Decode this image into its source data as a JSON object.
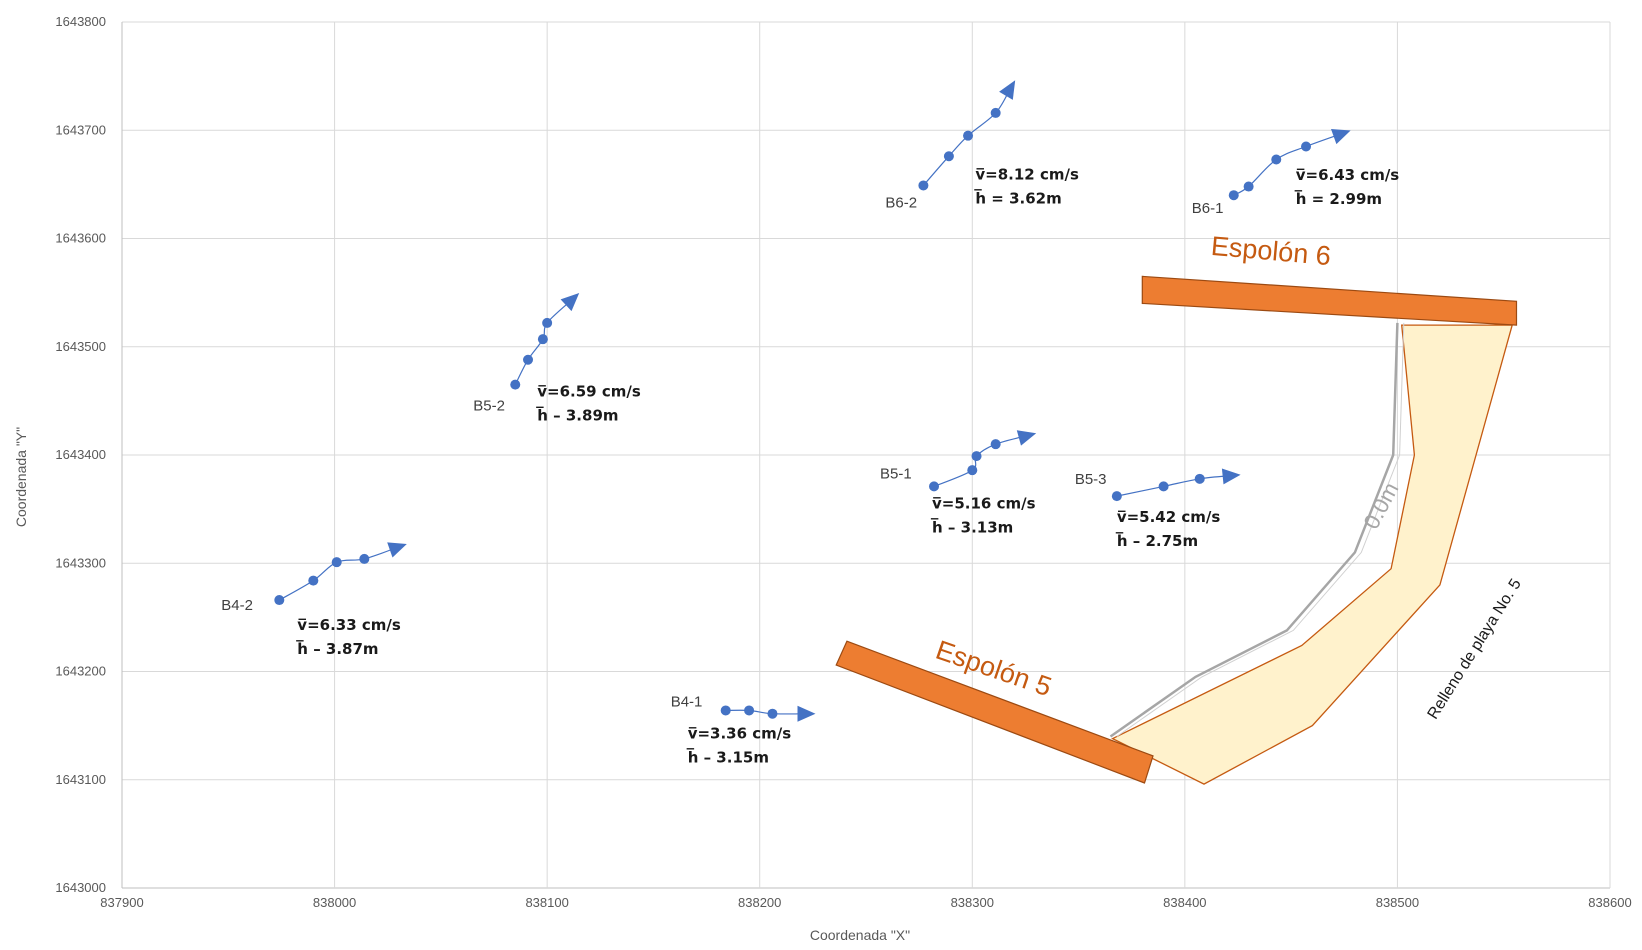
{
  "chart_data": {
    "type": "scatter",
    "title": "",
    "xlabel": "Coordenada \"X\"",
    "ylabel": "Coordenada \"Y\"",
    "xlim": [
      837900,
      838600
    ],
    "ylim": [
      1643000,
      1643800
    ],
    "x_ticks": [
      837900,
      838000,
      838100,
      838200,
      838300,
      838400,
      838500,
      838600
    ],
    "y_ticks": [
      1643000,
      1643100,
      1643200,
      1643300,
      1643400,
      1643500,
      1643600,
      1643700,
      1643800
    ],
    "grid": true,
    "series_color": "#4472c4",
    "series": [
      {
        "name": "B4-2",
        "v": "v̅=6.33 cm/s",
        "h": "h̅ – 3.87m",
        "points": [
          [
            837974,
            1643266
          ],
          [
            837990,
            1643284
          ],
          [
            838001,
            1643301
          ],
          [
            838014,
            1643304
          ],
          [
            838030,
            1643315
          ]
        ]
      },
      {
        "name": "B4-1",
        "v": "v̅=3.36 cm/s",
        "h": "h̅ – 3.15m",
        "points": [
          [
            838184,
            1643164
          ],
          [
            838195,
            1643164
          ],
          [
            838206,
            1643161
          ],
          [
            838222,
            1643161
          ]
        ]
      },
      {
        "name": "B5-2",
        "v": "v̅=6.59 cm/s",
        "h": "h̅ – 3.89m",
        "points": [
          [
            838085,
            1643465
          ],
          [
            838091,
            1643488
          ],
          [
            838098,
            1643507
          ],
          [
            838100,
            1643522
          ],
          [
            838112,
            1643544
          ]
        ]
      },
      {
        "name": "B5-1",
        "v": "v̅=5.16 cm/s",
        "h": "h̅ – 3.13m",
        "points": [
          [
            838282,
            1643371
          ],
          [
            838300,
            1643386
          ],
          [
            838302,
            1643399
          ],
          [
            838311,
            1643410
          ],
          [
            838326,
            1643418
          ]
        ]
      },
      {
        "name": "B5-3",
        "v": "v̅=5.42 cm/s",
        "h": "h̅ – 2.75m",
        "points": [
          [
            838368,
            1643362
          ],
          [
            838390,
            1643371
          ],
          [
            838407,
            1643378
          ],
          [
            838422,
            1643381
          ]
        ]
      },
      {
        "name": "B6-2",
        "v": "v̅=8.12 cm/s",
        "h": "h̅ = 3.62m",
        "points": [
          [
            838277,
            1643649
          ],
          [
            838289,
            1643676
          ],
          [
            838298,
            1643695
          ],
          [
            838311,
            1643716
          ],
          [
            838318,
            1643739
          ]
        ]
      },
      {
        "name": "B6-1",
        "v": "v̅=6.43 cm/s",
        "h": "h̅ = 2.99m",
        "points": [
          [
            838423,
            1643640
          ],
          [
            838430,
            1643648
          ],
          [
            838443,
            1643673
          ],
          [
            838457,
            1643685
          ],
          [
            838474,
            1643697
          ]
        ]
      }
    ],
    "structures": [
      {
        "name": "Espolón 6",
        "color": "#ed7d31",
        "polygon": [
          [
            838380,
            1643565
          ],
          [
            838556,
            1643542
          ],
          [
            838556,
            1643520
          ],
          [
            838380,
            1643540
          ]
        ]
      },
      {
        "name": "Espolón 5",
        "color": "#ed7d31",
        "polygon": [
          [
            838241,
            1643228
          ],
          [
            838385,
            1643122
          ],
          [
            838381,
            1643097
          ],
          [
            838236,
            1643206
          ]
        ]
      }
    ],
    "fill_area": {
      "name": "Relleno de playa No. 5",
      "color": "#fff2cc",
      "edge": "#c55a11",
      "polygon": [
        [
          838502,
          1643520
        ],
        [
          838554,
          1643520
        ],
        [
          838520,
          1643280
        ],
        [
          838460,
          1643150
        ],
        [
          838409,
          1643096
        ],
        [
          838366,
          1643138
        ],
        [
          838455,
          1643224
        ],
        [
          838497,
          1643295
        ],
        [
          838508,
          1643400
        ]
      ]
    },
    "contour": {
      "label": "0.0m",
      "color": "#a6a6a6",
      "points": [
        [
          838500,
          1643522
        ],
        [
          838498,
          1643400
        ],
        [
          838480,
          1643310
        ],
        [
          838448,
          1643238
        ],
        [
          838405,
          1643195
        ],
        [
          838365,
          1643140
        ]
      ]
    }
  }
}
